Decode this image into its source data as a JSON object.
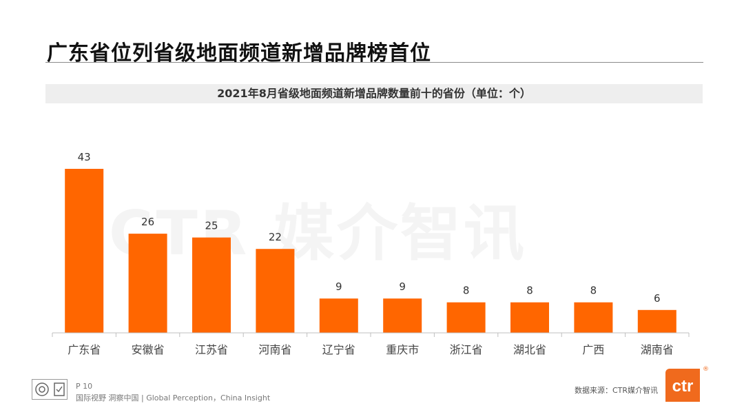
{
  "header": {
    "title": "广东省位列省级地面频道新增品牌榜首位",
    "subtitle": "2021年8月省级地面频道新增品牌数量前十的省份（单位：个）"
  },
  "watermark": "CTR 媒介智讯",
  "colors": {
    "bar": "#ff6600",
    "accent": "#f06a1d"
  },
  "chart_data": {
    "type": "bar",
    "title": "2021年8月省级地面频道新增品牌数量前十的省份（单位：个）",
    "categories": [
      "广东省",
      "安徽省",
      "江苏省",
      "河南省",
      "辽宁省",
      "重庆市",
      "浙江省",
      "湖北省",
      "广西",
      "湖南省"
    ],
    "values": [
      43,
      26,
      25,
      22,
      9,
      9,
      8,
      8,
      8,
      6
    ],
    "xlabel": "",
    "ylabel": "",
    "ylim": [
      0,
      43
    ],
    "grid": false,
    "legend": "none"
  },
  "footer": {
    "page": "P 10",
    "tagline": "国际视野  洞察中国 | Global Perception，China Insight",
    "source": "数据来源：CTR媒介智讯",
    "logo_text": "ctr",
    "reg_mark": "®"
  }
}
